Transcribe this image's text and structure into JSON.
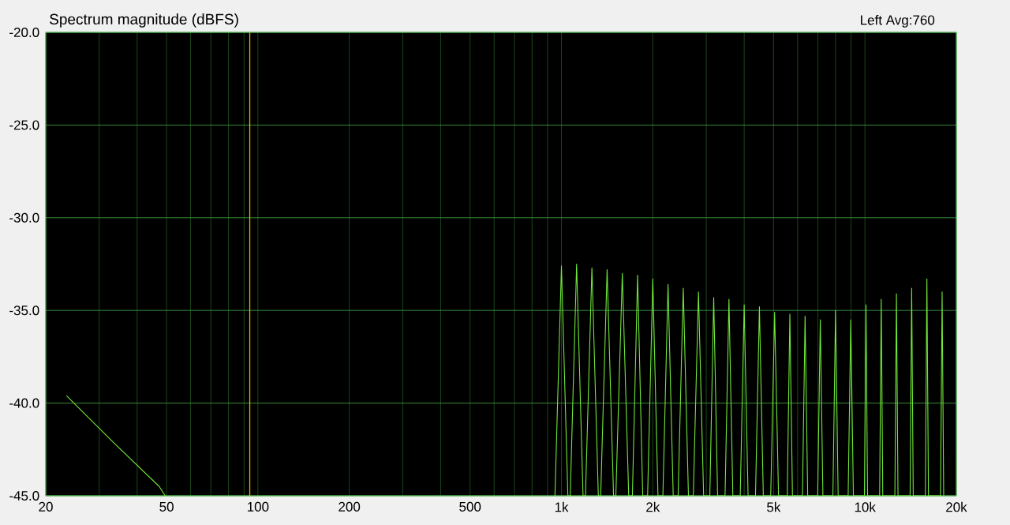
{
  "chart_data": {
    "type": "line",
    "title": "Spectrum magnitude (dBFS)",
    "annotations": [
      "Left  Avg:760"
    ],
    "log": "x",
    "grid": true,
    "xlim": [
      20,
      20000
    ],
    "ylim": [
      -45,
      -20
    ],
    "xticks": [
      {
        "value": 20,
        "label": "20"
      },
      {
        "value": 30,
        "label": null
      },
      {
        "value": 40,
        "label": null
      },
      {
        "value": 50,
        "label": "50"
      },
      {
        "value": 60,
        "label": null
      },
      {
        "value": 70,
        "label": null
      },
      {
        "value": 80,
        "label": null
      },
      {
        "value": 90,
        "label": null
      },
      {
        "value": 100,
        "label": "100"
      },
      {
        "value": 200,
        "label": "200"
      },
      {
        "value": 300,
        "label": null
      },
      {
        "value": 400,
        "label": null
      },
      {
        "value": 500,
        "label": "500"
      },
      {
        "value": 600,
        "label": null
      },
      {
        "value": 700,
        "label": null
      },
      {
        "value": 800,
        "label": null
      },
      {
        "value": 900,
        "label": null
      },
      {
        "value": 1000,
        "label": "1k"
      },
      {
        "value": 2000,
        "label": "2k"
      },
      {
        "value": 3000,
        "label": null
      },
      {
        "value": 4000,
        "label": null
      },
      {
        "value": 5000,
        "label": "5k"
      },
      {
        "value": 6000,
        "label": null
      },
      {
        "value": 7000,
        "label": null
      },
      {
        "value": 8000,
        "label": null
      },
      {
        "value": 9000,
        "label": null
      },
      {
        "value": 10000,
        "label": "10k"
      },
      {
        "value": 20000,
        "label": "20k"
      }
    ],
    "yticks": [
      {
        "value": -45,
        "label": "-45.0"
      },
      {
        "value": -40,
        "label": "-40.0"
      },
      {
        "value": -35,
        "label": "-35.0"
      },
      {
        "value": -30,
        "label": "-30.0"
      },
      {
        "value": -25,
        "label": "-25.0"
      },
      {
        "value": -20,
        "label": "-20.0"
      }
    ],
    "ref_lines": [
      {
        "axis": "x",
        "value": 94,
        "color": "#e8b400"
      }
    ],
    "series": [
      {
        "color": "#72e83a",
        "x": [
          23.4,
          33.3,
          47.3,
          49.5,
          60,
          952,
          1000,
          1050,
          1069,
          1122,
          1178,
          1200,
          1260,
          1323,
          1347,
          1414,
          1485,
          1511,
          1587,
          1666,
          1713,
          1782,
          1853,
          1923,
          2000,
          2080,
          2159,
          2245,
          2335,
          2423,
          2520,
          2621,
          2719,
          2828,
          2941,
          3083,
          3175,
          3270,
          3460,
          3564,
          3671,
          3883,
          4000,
          4120,
          4359,
          4490,
          4625,
          4893,
          5040,
          5191,
          5546,
          5657,
          5770,
          6225,
          6350,
          6477,
          6987,
          7127,
          7270,
          7843,
          8000,
          8160,
          8804,
          8980,
          9160,
          9960,
          10079,
          10200,
          11180,
          11314,
          11450,
          12548,
          12699,
          12851,
          14085,
          14254,
          14425,
          15810,
          16000,
          16192,
          17746,
          17959,
          18175
        ],
        "values": [
          -39.6,
          -42.1,
          -44.5,
          -45,
          null,
          -45,
          -32.6,
          -45,
          -45,
          -32.5,
          -45,
          -45,
          -32.7,
          -45,
          -45,
          -32.8,
          -45,
          -45,
          -33.0,
          -45,
          -45,
          -33.1,
          -45,
          -45,
          -33.3,
          -45,
          -45,
          -33.6,
          -45,
          -45,
          -33.8,
          -45,
          -45,
          -34.0,
          -45,
          -45,
          -34.3,
          -45,
          -45,
          -34.4,
          -45,
          -45,
          -34.7,
          -45,
          -45,
          -34.8,
          -45,
          -45,
          -35.1,
          -45,
          -45,
          -35.2,
          -45,
          -45,
          -35.3,
          -45,
          -45,
          -35.5,
          -45,
          -45,
          -35.0,
          -45,
          -45,
          -35.5,
          -45,
          -45,
          -34.7,
          -45,
          -45,
          -34.4,
          -45,
          -45,
          -34.1,
          -45,
          -45,
          -33.8,
          -45,
          -45,
          -33.3,
          -45,
          -45,
          -34.0,
          -45
        ]
      }
    ]
  }
}
